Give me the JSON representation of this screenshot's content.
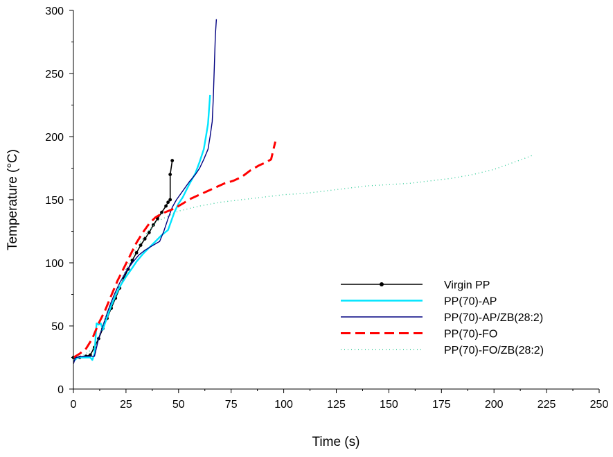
{
  "chart_data": {
    "type": "line",
    "title": "",
    "xlabel": "Time (s)",
    "ylabel": "Temperature (°C)",
    "xlim": [
      0,
      250
    ],
    "ylim": [
      0,
      300
    ],
    "xticks": [
      "0",
      "25",
      "50",
      "75",
      "100",
      "125",
      "150",
      "175",
      "200",
      "225",
      "250"
    ],
    "yticks": [
      "0",
      "50",
      "100",
      "150",
      "200",
      "250",
      "300"
    ],
    "grid": false,
    "legend_position": "bottom-right",
    "series": [
      {
        "name": "Virgin PP",
        "color": "#000000",
        "style": "solid-markers",
        "points": [
          [
            0,
            25
          ],
          [
            3,
            25
          ],
          [
            6,
            26
          ],
          [
            8,
            27
          ],
          [
            10,
            33
          ],
          [
            12,
            40
          ],
          [
            14,
            48
          ],
          [
            16,
            56
          ],
          [
            18,
            64
          ],
          [
            20,
            72
          ],
          [
            22,
            80
          ],
          [
            24,
            88
          ],
          [
            26,
            95
          ],
          [
            28,
            102
          ],
          [
            30,
            108
          ],
          [
            32,
            114
          ],
          [
            34,
            119
          ],
          [
            36,
            124
          ],
          [
            38,
            130
          ],
          [
            40,
            135
          ],
          [
            42,
            140
          ],
          [
            44,
            145
          ],
          [
            45,
            148
          ],
          [
            46,
            150
          ],
          [
            46,
            170
          ],
          [
            47,
            181
          ]
        ]
      },
      {
        "name": "PP(70)-AP",
        "color": "#00e5ff",
        "style": "solid-thick",
        "points": [
          [
            0,
            22
          ],
          [
            2,
            25
          ],
          [
            5,
            25
          ],
          [
            8,
            25
          ],
          [
            9,
            23
          ],
          [
            10,
            28
          ],
          [
            11,
            52
          ],
          [
            12,
            51
          ],
          [
            13,
            52
          ],
          [
            14,
            47
          ],
          [
            16,
            57
          ],
          [
            18,
            66
          ],
          [
            20,
            74
          ],
          [
            22,
            81
          ],
          [
            25,
            89
          ],
          [
            28,
            96
          ],
          [
            30,
            101
          ],
          [
            33,
            107
          ],
          [
            36,
            112
          ],
          [
            39,
            117
          ],
          [
            42,
            122
          ],
          [
            45,
            126
          ],
          [
            48,
            140
          ],
          [
            50,
            147
          ],
          [
            52,
            152
          ],
          [
            55,
            162
          ],
          [
            58,
            171
          ],
          [
            60,
            180
          ],
          [
            62,
            190
          ],
          [
            63,
            200
          ],
          [
            64,
            210
          ],
          [
            65,
            233
          ]
        ]
      },
      {
        "name": "PP(70)-AP/ZB(28:2)",
        "color": "#000080",
        "style": "solid-thin",
        "points": [
          [
            0,
            20
          ],
          [
            1,
            25
          ],
          [
            5,
            26
          ],
          [
            8,
            26
          ],
          [
            10,
            26
          ],
          [
            12,
            40
          ],
          [
            14,
            50
          ],
          [
            16,
            60
          ],
          [
            18,
            69
          ],
          [
            20,
            77
          ],
          [
            22,
            84
          ],
          [
            25,
            93
          ],
          [
            28,
            100
          ],
          [
            31,
            106
          ],
          [
            34,
            110
          ],
          [
            37,
            113
          ],
          [
            40,
            116
          ],
          [
            41,
            117
          ],
          [
            43,
            125
          ],
          [
            45,
            135
          ],
          [
            47,
            144
          ],
          [
            49,
            150
          ],
          [
            52,
            157
          ],
          [
            55,
            164
          ],
          [
            58,
            170
          ],
          [
            60,
            175
          ],
          [
            62,
            182
          ],
          [
            64,
            190
          ],
          [
            65,
            200
          ],
          [
            66,
            212
          ],
          [
            66.5,
            230
          ],
          [
            67,
            255
          ],
          [
            67.5,
            280
          ],
          [
            68,
            293
          ]
        ]
      },
      {
        "name": "PP(70)-FO",
        "color": "#ff0000",
        "style": "dashed",
        "points": [
          [
            0,
            25
          ],
          [
            3,
            28
          ],
          [
            6,
            32
          ],
          [
            9,
            40
          ],
          [
            12,
            52
          ],
          [
            15,
            62
          ],
          [
            18,
            74
          ],
          [
            21,
            86
          ],
          [
            24,
            96
          ],
          [
            27,
            106
          ],
          [
            30,
            116
          ],
          [
            33,
            124
          ],
          [
            36,
            131
          ],
          [
            39,
            136
          ],
          [
            42,
            139
          ],
          [
            45,
            141
          ],
          [
            48,
            143
          ],
          [
            52,
            147
          ],
          [
            56,
            151
          ],
          [
            60,
            154
          ],
          [
            64,
            157
          ],
          [
            68,
            160
          ],
          [
            72,
            163
          ],
          [
            76,
            165
          ],
          [
            80,
            168
          ],
          [
            84,
            173
          ],
          [
            88,
            177
          ],
          [
            92,
            180
          ],
          [
            94,
            182
          ],
          [
            95,
            189
          ],
          [
            96,
            196
          ]
        ]
      },
      {
        "name": "PP(70)-FO/ZB(28:2)",
        "color": "#33cc99",
        "style": "dotted",
        "points": [
          [
            0,
            25
          ],
          [
            5,
            27
          ],
          [
            10,
            33
          ],
          [
            15,
            55
          ],
          [
            20,
            76
          ],
          [
            25,
            95
          ],
          [
            30,
            112
          ],
          [
            35,
            124
          ],
          [
            40,
            133
          ],
          [
            45,
            137
          ],
          [
            50,
            141
          ],
          [
            60,
            145
          ],
          [
            70,
            148
          ],
          [
            80,
            150
          ],
          [
            90,
            152
          ],
          [
            100,
            154
          ],
          [
            110,
            155
          ],
          [
            120,
            157
          ],
          [
            130,
            159
          ],
          [
            140,
            161
          ],
          [
            150,
            162
          ],
          [
            160,
            163
          ],
          [
            170,
            165
          ],
          [
            180,
            167
          ],
          [
            190,
            170
          ],
          [
            200,
            174
          ],
          [
            205,
            177
          ],
          [
            210,
            180
          ],
          [
            215,
            183
          ],
          [
            218,
            185
          ]
        ]
      }
    ]
  }
}
